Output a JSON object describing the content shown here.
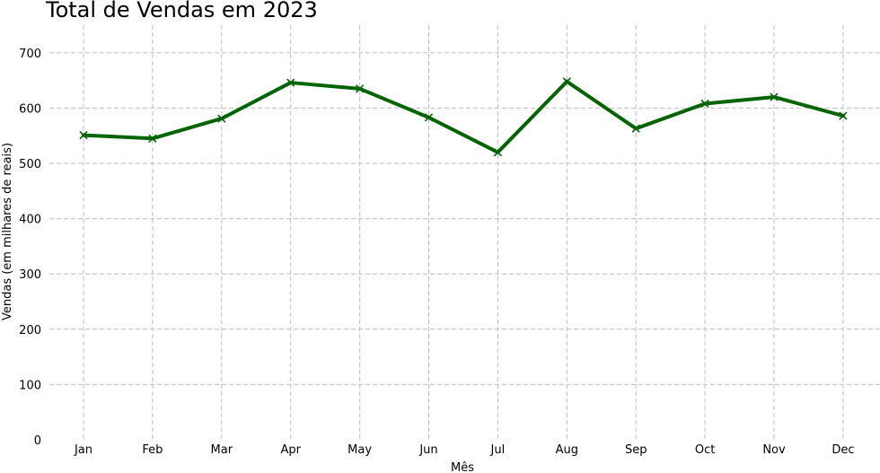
{
  "chart_data": {
    "type": "line",
    "title": "Total de Vendas em 2023",
    "xlabel": "Mês",
    "ylabel": "Vendas (em milhares de reais)",
    "categories": [
      "Jan",
      "Feb",
      "Mar",
      "Apr",
      "May",
      "Jun",
      "Jul",
      "Aug",
      "Sep",
      "Oct",
      "Nov",
      "Dec"
    ],
    "series": [
      {
        "values": [
          551,
          545,
          581,
          646,
          635,
          583,
          520,
          648,
          563,
          608,
          620,
          586
        ],
        "color": "#006400",
        "marker": "x"
      }
    ],
    "ylim": [
      0,
      750
    ],
    "yticks": [
      0,
      100,
      200,
      300,
      400,
      500,
      600,
      700
    ],
    "grid": true,
    "legend": "none"
  }
}
